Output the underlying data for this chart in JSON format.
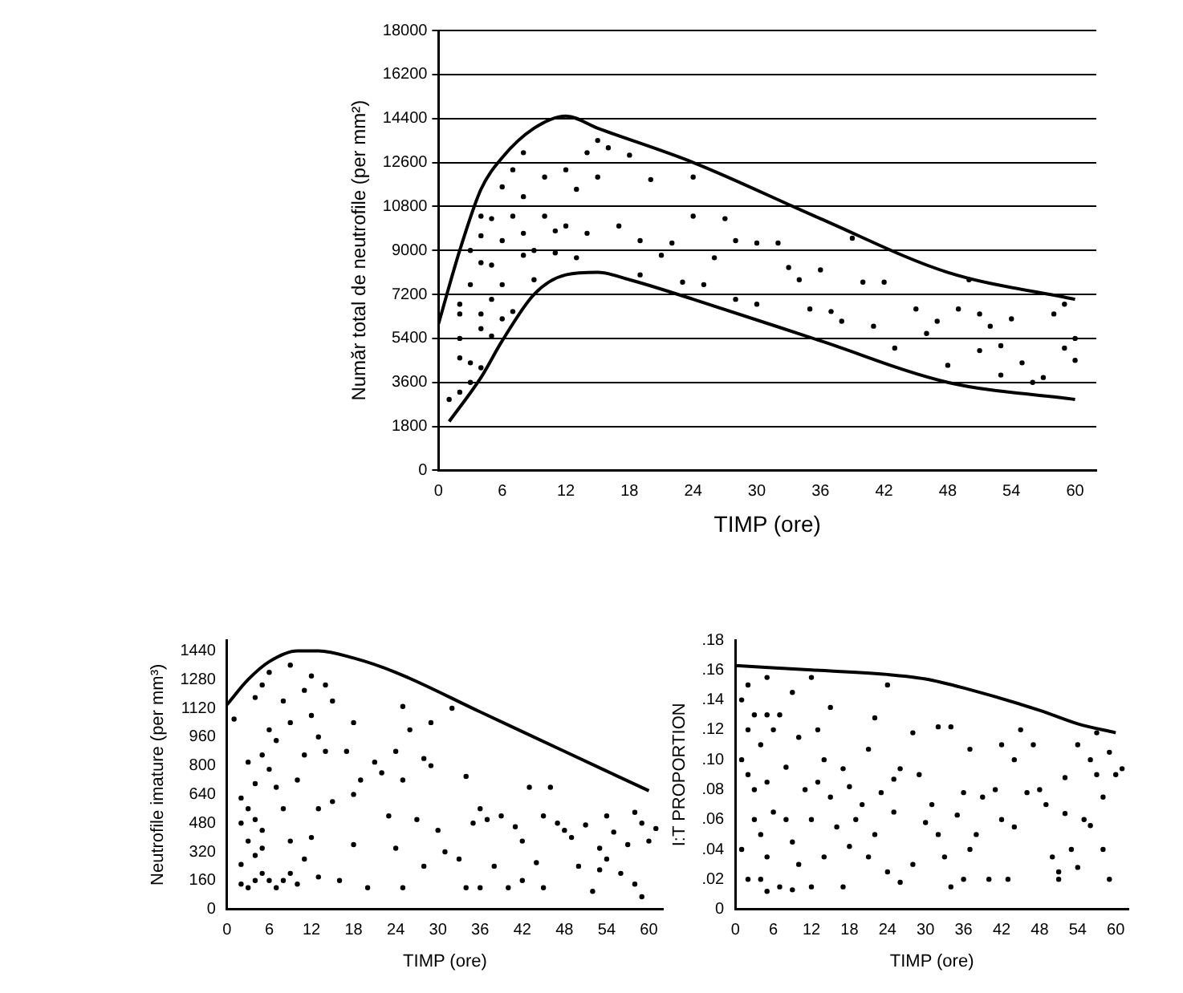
{
  "chart_data": [
    {
      "type": "scatter",
      "xlabel": "TIMP (ore)",
      "ylabel": "Număr total de neutrofile (per mm²)",
      "xlim": [
        0,
        62
      ],
      "ylim": [
        0,
        18000
      ],
      "xticks": [
        0,
        6,
        12,
        18,
        24,
        30,
        36,
        42,
        48,
        54,
        60
      ],
      "yticks": [
        0,
        1800,
        3600,
        5400,
        7200,
        9000,
        10800,
        12600,
        14400,
        16200,
        18000
      ],
      "grid": "y",
      "marker": "circle",
      "series": [
        {
          "type": "scatter",
          "color": "#000000",
          "x": [
            1,
            2,
            2,
            2,
            2,
            2,
            3,
            3,
            3,
            3,
            4,
            4,
            4,
            4,
            4,
            4,
            5,
            5,
            5,
            5,
            6,
            6,
            6,
            6,
            7,
            7,
            7,
            8,
            8,
            8,
            8,
            9,
            9,
            10,
            10,
            11,
            11,
            12,
            12,
            13,
            13,
            14,
            14,
            15,
            15,
            16,
            17,
            18,
            19,
            19,
            20,
            21,
            22,
            23,
            24,
            24,
            25,
            26,
            27,
            28,
            28,
            30,
            30,
            32,
            33,
            34,
            35,
            36,
            37,
            38,
            39,
            40,
            41,
            42,
            43,
            45,
            46,
            47,
            48,
            49,
            50,
            51,
            51,
            52,
            53,
            53,
            54,
            55,
            56,
            57,
            58,
            59,
            60,
            60,
            59
          ],
          "values": [
            2900,
            3200,
            4600,
            5400,
            6400,
            6800,
            3600,
            4400,
            7600,
            9000,
            4200,
            5800,
            6400,
            8500,
            9600,
            10400,
            5500,
            7000,
            8400,
            10300,
            6200,
            7600,
            9400,
            11600,
            6500,
            10400,
            12300,
            8800,
            9700,
            11200,
            13000,
            9000,
            7800,
            10400,
            12000,
            9800,
            8900,
            12300,
            10000,
            11500,
            8700,
            13000,
            9700,
            13500,
            12000,
            13200,
            10000,
            12900,
            9400,
            8000,
            11900,
            8800,
            9300,
            7700,
            12000,
            10400,
            7600,
            8700,
            10300,
            9400,
            7000,
            9300,
            6800,
            9300,
            8300,
            7800,
            6600,
            8200,
            6500,
            6100,
            9500,
            7700,
            5900,
            7700,
            5000,
            6600,
            5600,
            6100,
            4300,
            6600,
            7800,
            4900,
            6400,
            5900,
            3900,
            5100,
            6200,
            4400,
            3600,
            3800,
            6400,
            5000,
            4500,
            5400,
            6800
          ]
        },
        {
          "type": "line",
          "color": "#000000",
          "marker": "none",
          "x": [
            0,
            2,
            4,
            6,
            9,
            12,
            15,
            24,
            36,
            48,
            60
          ],
          "values": [
            6000,
            9000,
            11500,
            12800,
            14000,
            14500,
            14000,
            12600,
            10300,
            8100,
            7000
          ]
        },
        {
          "type": "line",
          "color": "#000000",
          "marker": "none",
          "x": [
            1,
            4,
            6,
            9,
            12,
            15,
            18,
            24,
            36,
            48,
            60
          ],
          "values": [
            2000,
            3800,
            5300,
            7200,
            8000,
            8100,
            7800,
            7000,
            5300,
            3600,
            2900
          ]
        }
      ]
    },
    {
      "type": "scatter",
      "xlabel": "TIMP (ore)",
      "ylabel": "Neutrofile imature (per mm³)",
      "xlim": [
        0,
        62
      ],
      "ylim": [
        0,
        1500
      ],
      "xticks": [
        0,
        6,
        12,
        18,
        24,
        30,
        36,
        42,
        48,
        54,
        60
      ],
      "yticks": [
        0,
        160,
        320,
        480,
        640,
        800,
        960,
        1120,
        1280,
        1440
      ],
      "marker": "circle",
      "series": [
        {
          "type": "scatter",
          "color": "#000000",
          "x": [
            1,
            2,
            2,
            2,
            2,
            3,
            3,
            3,
            3,
            4,
            4,
            4,
            4,
            4,
            5,
            5,
            5,
            5,
            5,
            6,
            6,
            6,
            6,
            7,
            7,
            7,
            8,
            8,
            8,
            9,
            9,
            9,
            9,
            10,
            10,
            11,
            11,
            11,
            12,
            12,
            12,
            13,
            13,
            13,
            14,
            14,
            15,
            15,
            16,
            17,
            18,
            18,
            18,
            19,
            20,
            21,
            22,
            23,
            24,
            24,
            25,
            25,
            25,
            26,
            27,
            28,
            28,
            29,
            29,
            30,
            31,
            32,
            33,
            34,
            34,
            35,
            36,
            36,
            37,
            38,
            39,
            40,
            41,
            42,
            42,
            43,
            44,
            45,
            45,
            46,
            47,
            48,
            49,
            50,
            51,
            52,
            53,
            53,
            54,
            54,
            55,
            56,
            57,
            58,
            58,
            59,
            59,
            60,
            61
          ],
          "values": [
            1060,
            480,
            140,
            250,
            620,
            820,
            380,
            120,
            560,
            1180,
            700,
            300,
            160,
            500,
            1250,
            860,
            440,
            200,
            340,
            1000,
            780,
            160,
            1320,
            940,
            680,
            120,
            1160,
            560,
            160,
            1360,
            1040,
            200,
            380,
            720,
            140,
            860,
            1220,
            280,
            1300,
            1080,
            400,
            960,
            560,
            180,
            1250,
            880,
            600,
            1160,
            160,
            880,
            1040,
            640,
            360,
            720,
            120,
            820,
            760,
            520,
            880,
            340,
            1130,
            720,
            120,
            1000,
            500,
            840,
            240,
            1040,
            800,
            440,
            320,
            1120,
            280,
            740,
            120,
            480,
            560,
            120,
            500,
            240,
            520,
            120,
            460,
            160,
            380,
            680,
            260,
            520,
            120,
            680,
            480,
            440,
            400,
            240,
            470,
            100,
            340,
            220,
            520,
            280,
            430,
            200,
            360,
            540,
            140,
            480,
            70,
            380,
            450
          ]
        },
        {
          "type": "line",
          "color": "#000000",
          "marker": "none",
          "x": [
            0,
            3,
            6,
            10,
            13,
            18,
            24,
            36,
            48,
            60
          ],
          "values": [
            1140,
            1280,
            1380,
            1440,
            1440,
            1400,
            1320,
            1100,
            880,
            660
          ]
        }
      ]
    },
    {
      "type": "scatter",
      "xlabel": "TIMP (ore)",
      "ylabel": "I:T PROPORTION",
      "xlim": [
        0,
        62
      ],
      "ylim": [
        0,
        0.18
      ],
      "xticks": [
        0,
        6,
        12,
        18,
        24,
        30,
        36,
        42,
        48,
        54,
        60
      ],
      "yticks": [
        0,
        {
          "value": 0.02,
          "label": ".02"
        },
        {
          "value": 0.04,
          "label": ".04"
        },
        {
          "value": 0.06,
          "label": ".06"
        },
        {
          "value": 0.08,
          "label": ".08"
        },
        {
          "value": 0.1,
          "label": ".10"
        },
        {
          "value": 0.12,
          "label": ".12"
        },
        {
          "value": 0.14,
          "label": ".14"
        },
        {
          "value": 0.16,
          "label": ".16"
        },
        {
          "value": 0.18,
          "label": ".18"
        }
      ],
      "marker": "circle",
      "series": [
        {
          "type": "scatter",
          "color": "#000000",
          "x": [
            1,
            1,
            1,
            2,
            2,
            2,
            2,
            3,
            3,
            3,
            4,
            4,
            4,
            5,
            5,
            5,
            5,
            5,
            6,
            6,
            7,
            7,
            8,
            8,
            9,
            9,
            9,
            10,
            10,
            11,
            12,
            12,
            12,
            13,
            13,
            14,
            14,
            15,
            15,
            16,
            17,
            17,
            18,
            18,
            19,
            20,
            21,
            21,
            22,
            22,
            23,
            24,
            24,
            25,
            25,
            26,
            26,
            28,
            28,
            29,
            30,
            31,
            32,
            32,
            33,
            34,
            34,
            35,
            36,
            36,
            37,
            37,
            38,
            39,
            40,
            41,
            42,
            42,
            43,
            44,
            44,
            45,
            46,
            47,
            48,
            49,
            50,
            51,
            51,
            52,
            52,
            53,
            54,
            54,
            55,
            56,
            56,
            57,
            57,
            58,
            58,
            59,
            59,
            60,
            61
          ],
          "values": [
            0.14,
            0.1,
            0.04,
            0.15,
            0.12,
            0.09,
            0.02,
            0.13,
            0.06,
            0.08,
            0.11,
            0.05,
            0.02,
            0.155,
            0.13,
            0.085,
            0.035,
            0.012,
            0.12,
            0.065,
            0.13,
            0.015,
            0.095,
            0.06,
            0.145,
            0.045,
            0.013,
            0.115,
            0.03,
            0.08,
            0.155,
            0.06,
            0.015,
            0.12,
            0.085,
            0.1,
            0.035,
            0.135,
            0.075,
            0.055,
            0.094,
            0.015,
            0.082,
            0.042,
            0.06,
            0.07,
            0.107,
            0.035,
            0.128,
            0.05,
            0.078,
            0.15,
            0.025,
            0.087,
            0.065,
            0.094,
            0.018,
            0.118,
            0.03,
            0.09,
            0.058,
            0.07,
            0.122,
            0.05,
            0.035,
            0.122,
            0.015,
            0.063,
            0.078,
            0.02,
            0.107,
            0.04,
            0.05,
            0.075,
            0.02,
            0.08,
            0.11,
            0.06,
            0.02,
            0.1,
            0.055,
            0.12,
            0.078,
            0.11,
            0.08,
            0.07,
            0.035,
            0.02,
            0.025,
            0.088,
            0.064,
            0.04,
            0.11,
            0.028,
            0.06,
            0.1,
            0.056,
            0.09,
            0.118,
            0.04,
            0.075,
            0.02,
            0.105,
            0.09,
            0.094
          ]
        },
        {
          "type": "line",
          "color": "#000000",
          "marker": "none",
          "x": [
            0,
            12,
            24,
            30,
            36,
            48,
            54,
            60
          ],
          "values": [
            0.163,
            0.16,
            0.157,
            0.154,
            0.148,
            0.133,
            0.124,
            0.118
          ]
        }
      ]
    }
  ]
}
